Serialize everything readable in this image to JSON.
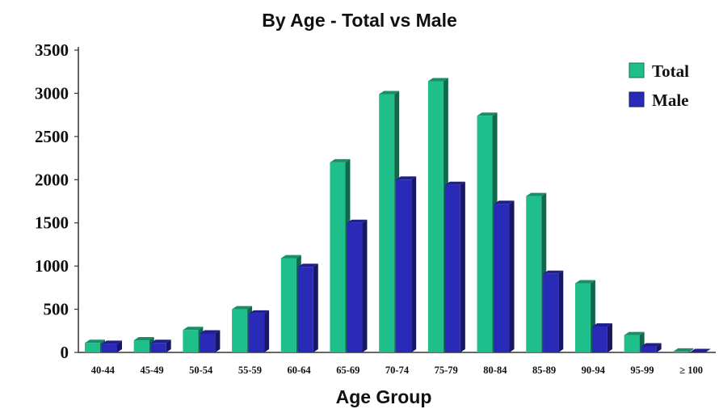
{
  "chart_data": {
    "type": "bar",
    "subtitle": "By Age - Total vs Male",
    "xlabel": "Age Group",
    "ylabel": "",
    "ylim": [
      0,
      3500
    ],
    "yticks": [
      "0",
      "500",
      "1000",
      "1500",
      "2000",
      "2500",
      "3000",
      "3500"
    ],
    "categories": [
      "40-44",
      "45-49",
      "50-54",
      "55-59",
      "60-64",
      "65-69",
      "70-74",
      "75-79",
      "80-84",
      "85-89",
      "90-94",
      "95-99",
      "≥ 100"
    ],
    "series": [
      {
        "name": "Total",
        "color": "#1fbf8c",
        "values": [
          110,
          140,
          260,
          500,
          1090,
          2200,
          2990,
          3140,
          2740,
          1810,
          800,
          200,
          10
        ]
      },
      {
        "name": "Male",
        "color": "#2a2ab8",
        "values": [
          100,
          110,
          220,
          450,
          990,
          1500,
          2000,
          1940,
          1720,
          910,
          300,
          70,
          5
        ]
      }
    ],
    "legend_position": "top-right",
    "grid": false
  }
}
